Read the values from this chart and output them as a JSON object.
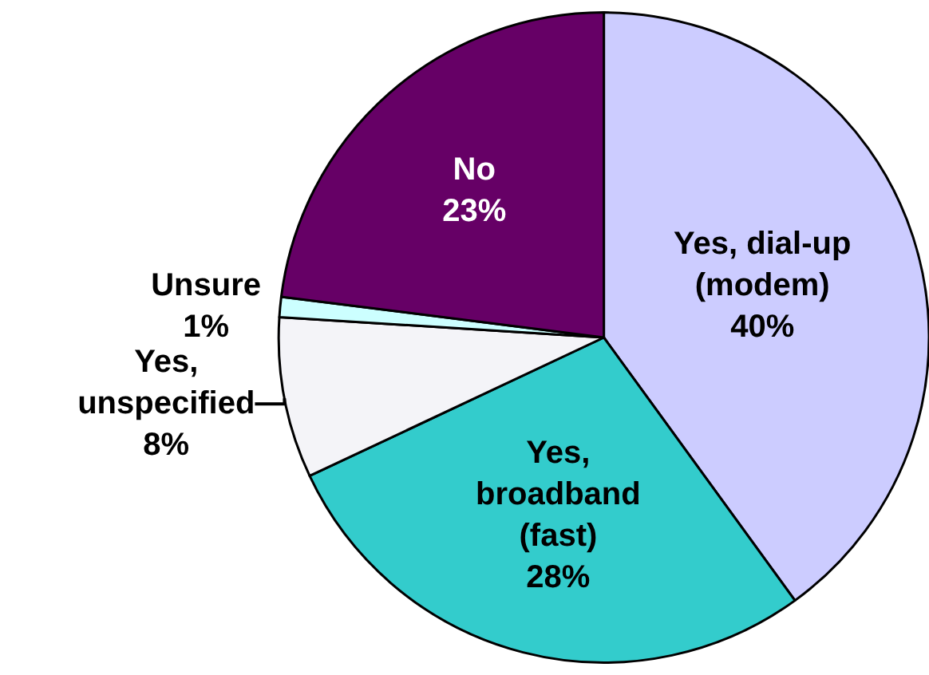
{
  "chart_data": {
    "type": "pie",
    "categories": [
      "Yes, dial-up (modem)",
      "Yes, broadband (fast)",
      "Yes, unspecified",
      "Unsure",
      "No"
    ],
    "values": [
      40,
      28,
      8,
      1,
      23
    ],
    "value_labels": [
      "40%",
      "28%",
      "8%",
      "1%",
      "23%"
    ],
    "colors": [
      "#ccccff",
      "#33cccc",
      "#f4f4f8",
      "#ccffff",
      "#660066"
    ],
    "legend": false
  }
}
